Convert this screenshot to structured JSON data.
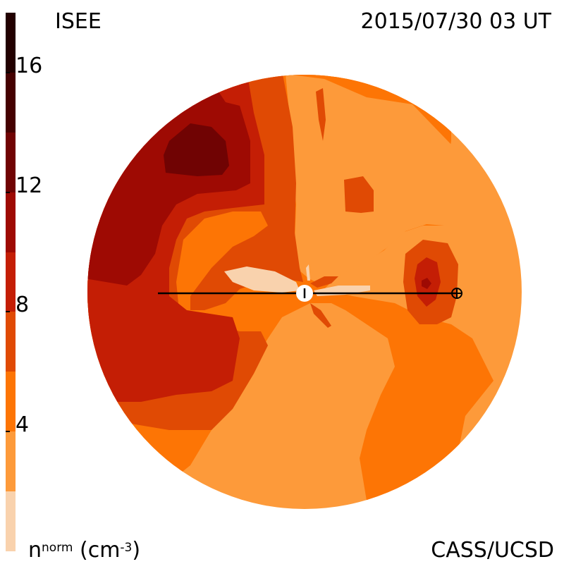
{
  "header": {
    "observatory": "ISEE",
    "datetime": "2015/07/30 03 UT"
  },
  "footer": {
    "quantity": "n",
    "quantity_superscript": "norm",
    "unit": "(cm",
    "unit_superscript": "-3",
    "unit_close": ")",
    "credit": "CASS/UCSD"
  },
  "colorbar": {
    "tick_labels": [
      "16",
      "12",
      "8",
      "4"
    ],
    "bands": [
      {
        "from": 0,
        "to": 2,
        "color": "#f9d2ad"
      },
      {
        "from": 2,
        "to": 4,
        "color": "#fd9a3a"
      },
      {
        "from": 4,
        "to": 6,
        "color": "#fd7505"
      },
      {
        "from": 6,
        "to": 8,
        "color": "#e04a04"
      },
      {
        "from": 8,
        "to": 10,
        "color": "#c41e05"
      },
      {
        "from": 10,
        "to": 12,
        "color": "#9e0a03"
      },
      {
        "from": 12,
        "to": 14,
        "color": "#700303"
      },
      {
        "from": 14,
        "to": 16,
        "color": "#450101"
      },
      {
        "from": 16,
        "to": 18,
        "color": "#220000"
      }
    ],
    "range": [
      0,
      18
    ]
  },
  "colors": {
    "background": "#ffffff",
    "sun": "#ffffff",
    "earth_line": "#000000"
  },
  "symbols": {
    "sun": "sun-icon",
    "earth": "earth-icon"
  }
}
